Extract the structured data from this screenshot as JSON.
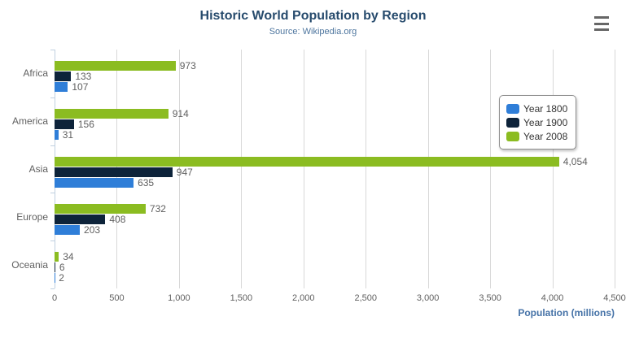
{
  "header": {
    "title": "Historic World Population by Region",
    "subtitle": "Source: Wikipedia.org"
  },
  "menu": {
    "icon": "hamburger-menu-icon"
  },
  "colors": {
    "title_text": "#274b6d",
    "subtitle_text": "#4d759e",
    "axis_title_text": "#4572a7",
    "grid_line": "#d8d8d8",
    "axis_line": "#c0d0e0",
    "label_text": "#606060",
    "legend_border": "#909090",
    "legend_text": "#333333",
    "menu_icon": "#666666"
  },
  "chart_data": {
    "type": "bar",
    "orientation": "horizontal",
    "title": "Historic World Population by Region",
    "subtitle": "Source: Wikipedia.org",
    "categories": [
      "Africa",
      "America",
      "Asia",
      "Europe",
      "Oceania"
    ],
    "series": [
      {
        "name": "Year 1800",
        "color": "#2f7ed8",
        "values": [
          107,
          31,
          635,
          203,
          2
        ]
      },
      {
        "name": "Year 1900",
        "color": "#0d233a",
        "values": [
          133,
          156,
          947,
          408,
          6
        ]
      },
      {
        "name": "Year 2008",
        "color": "#8bbc21",
        "values": [
          973,
          914,
          4054,
          732,
          34
        ]
      }
    ],
    "bar_display_order_top_to_bottom": [
      "Year 2008",
      "Year 1900",
      "Year 1800"
    ],
    "data_labels_shown": true,
    "xlabel": "Population (millions)",
    "ylabel": "",
    "xlim": [
      0,
      4500
    ],
    "tick_step": 500,
    "tick_labels": [
      "0",
      "500",
      "1,000",
      "1,500",
      "2,000",
      "2,500",
      "3,000",
      "3,500",
      "4,000",
      "4,500"
    ],
    "grid": true,
    "legend_position": "right",
    "legend_entries": [
      "Year 1800",
      "Year 1900",
      "Year 2008"
    ]
  }
}
